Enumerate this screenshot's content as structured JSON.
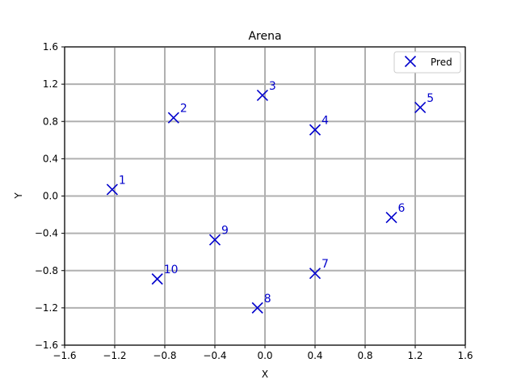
{
  "chart_data": {
    "type": "scatter",
    "title": "Arena",
    "xlabel": "X",
    "ylabel": "Y",
    "xlim": [
      -1.6,
      1.6
    ],
    "ylim": [
      -1.6,
      1.6
    ],
    "xticks": [
      "−1.6",
      "−1.2",
      "−0.8",
      "−0.4",
      "0.0",
      "0.4",
      "0.8",
      "1.2",
      "1.6"
    ],
    "yticks": [
      "−1.6",
      "−1.2",
      "−0.8",
      "−0.4",
      "0.0",
      "0.4",
      "0.8",
      "1.2",
      "1.6"
    ],
    "grid": true,
    "legend_position": "top-right",
    "marker_color": "#0000cc",
    "series": [
      {
        "name": "Pred",
        "marker": "x",
        "points": [
          {
            "label": "1",
            "x": -1.22,
            "y": 0.07
          },
          {
            "label": "2",
            "x": -0.73,
            "y": 0.84
          },
          {
            "label": "3",
            "x": -0.02,
            "y": 1.08
          },
          {
            "label": "4",
            "x": 0.4,
            "y": 0.71
          },
          {
            "label": "5",
            "x": 1.24,
            "y": 0.95
          },
          {
            "label": "6",
            "x": 1.01,
            "y": -0.23
          },
          {
            "label": "7",
            "x": 0.4,
            "y": -0.83
          },
          {
            "label": "8",
            "x": -0.06,
            "y": -1.2
          },
          {
            "label": "9",
            "x": -0.4,
            "y": -0.47
          },
          {
            "label": "10",
            "x": -0.86,
            "y": -0.89
          }
        ]
      }
    ]
  }
}
